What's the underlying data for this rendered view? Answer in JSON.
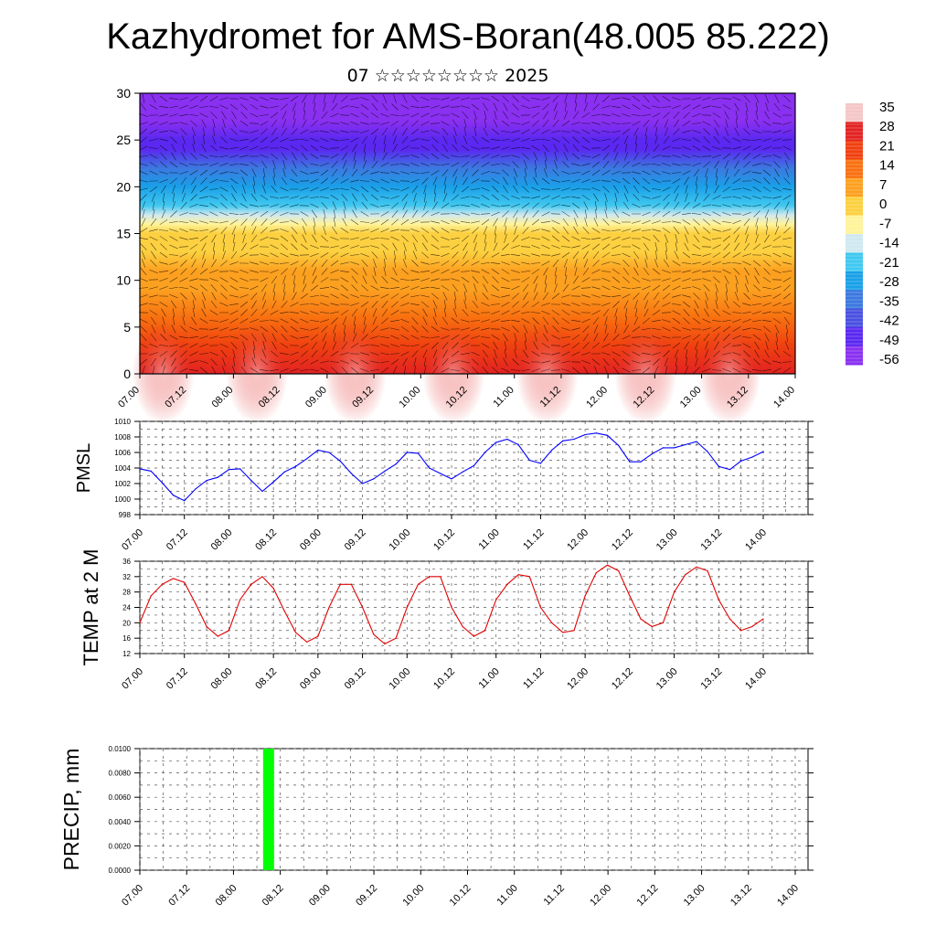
{
  "header": {
    "title": "Kazhydromet for AMS-Boran(48.005 85.222)",
    "subtitle": "07 ☆☆☆☆☆☆☆☆ 2025"
  },
  "time_ticks": [
    "07.00",
    "07.12",
    "08.00",
    "08.12",
    "09.00",
    "09.12",
    "10.00",
    "10.12",
    "11.00",
    "11.12",
    "12.00",
    "12.12",
    "13.00",
    "13.12",
    "14.00"
  ],
  "chart_data": [
    {
      "type": "heatmap",
      "title": "",
      "xlabel": "",
      "ylabel": "",
      "ylim": [
        0,
        30
      ],
      "y_ticks": [
        0,
        5,
        10,
        15,
        20,
        25,
        30
      ],
      "colorbar_labels": [
        35,
        28,
        21,
        14,
        7,
        0,
        -7,
        -14,
        -21,
        -28,
        -35,
        -42,
        -49,
        -56
      ],
      "colorbar_colors": [
        "#f4c6c6",
        "#e22222",
        "#f04010",
        "#f87010",
        "#fca020",
        "#fcd040",
        "#fff39a",
        "#cfe8f0",
        "#40c8f0",
        "#1aa0e8",
        "#3c78e0",
        "#4a50e0",
        "#5a28f0",
        "#8a30f0"
      ],
      "temperature_profile": {
        "heights": [
          0,
          3,
          6,
          9,
          11,
          13,
          15,
          16,
          17,
          18,
          20,
          22,
          24,
          25,
          27,
          30
        ],
        "temps": [
          28,
          21,
          14,
          9,
          5,
          2,
          -3,
          -6,
          -12,
          -22,
          -30,
          -38,
          -47,
          -50,
          -55,
          -56
        ]
      },
      "annotations": []
    },
    {
      "type": "line",
      "ylabel": "PMSL",
      "ylim": [
        998,
        1010
      ],
      "y_ticks": [
        998,
        1000,
        1002,
        1004,
        1006,
        1008,
        1010
      ],
      "series": [
        {
          "color": "#0000ff",
          "x": [
            0,
            3,
            6,
            9,
            12,
            15,
            18,
            21,
            24,
            27,
            30,
            33,
            36,
            39,
            42,
            45,
            48,
            51,
            54,
            57,
            60,
            63,
            66,
            69,
            72,
            75,
            78,
            81,
            84,
            87,
            90,
            93,
            96,
            99,
            102,
            105,
            108,
            111,
            114,
            117,
            120,
            123,
            126,
            129,
            132,
            135,
            138,
            141,
            144,
            147,
            150,
            153,
            156,
            159,
            162,
            165,
            168
          ],
          "values": [
            1003.9,
            1003.6,
            1002.1,
            1000.5,
            999.8,
            1001.3,
            1002.4,
            1002.8,
            1003.8,
            1003.9,
            1002.4,
            1001.0,
            1002.2,
            1003.5,
            1004.2,
            1005.2,
            1006.3,
            1006.0,
            1004.9,
            1003.3,
            1002.0,
            1002.6,
            1003.6,
            1004.5,
            1006.0,
            1005.9,
            1004.0,
            1003.3,
            1002.6,
            1003.5,
            1004.3,
            1006.0,
            1007.3,
            1007.7,
            1007.0,
            1005.0,
            1004.6,
            1006.3,
            1007.5,
            1007.7,
            1008.3,
            1008.5,
            1008.2,
            1006.9,
            1004.8,
            1004.8,
            1005.8,
            1006.6,
            1006.6,
            1007.0,
            1007.4,
            1006.1,
            1004.2,
            1003.8,
            1004.9,
            1005.4,
            1006.1
          ]
        }
      ]
    },
    {
      "type": "line",
      "ylabel": "TEMP at 2 M",
      "ylim": [
        12,
        36
      ],
      "y_ticks": [
        12,
        16,
        20,
        24,
        28,
        32,
        36
      ],
      "series": [
        {
          "color": "#e00000",
          "x": [
            0,
            3,
            6,
            9,
            12,
            15,
            18,
            21,
            24,
            27,
            30,
            33,
            36,
            39,
            42,
            45,
            48,
            51,
            54,
            57,
            60,
            63,
            66,
            69,
            72,
            75,
            78,
            81,
            84,
            87,
            90,
            93,
            96,
            99,
            102,
            105,
            108,
            111,
            114,
            117,
            120,
            123,
            126,
            129,
            132,
            135,
            138,
            141,
            144,
            147,
            150,
            153,
            156,
            159,
            162,
            165,
            168
          ],
          "values": [
            20,
            27,
            30,
            31.5,
            30.5,
            25,
            19,
            16.5,
            18,
            26,
            30,
            32,
            29,
            23,
            17.5,
            15,
            16.5,
            24,
            30,
            30,
            24,
            17,
            14.5,
            16,
            24,
            30,
            32,
            32,
            24,
            19,
            16.5,
            18,
            26,
            30,
            32.5,
            32,
            24,
            20,
            17.5,
            18,
            27,
            33,
            35,
            33.5,
            27,
            21,
            19,
            20,
            28,
            32.5,
            34.5,
            33.5,
            26,
            21,
            18,
            19,
            21
          ]
        }
      ]
    },
    {
      "type": "bar",
      "ylabel": "PRECIP, mm",
      "ylim": [
        0,
        0.01
      ],
      "y_ticks": [
        "0.0000",
        "0.0020",
        "0.0040",
        "0.0060",
        "0.0080",
        "0.0100"
      ],
      "series": [
        {
          "color": "#00ff00",
          "x": [
            33
          ],
          "values": [
            0.01
          ]
        }
      ]
    }
  ]
}
